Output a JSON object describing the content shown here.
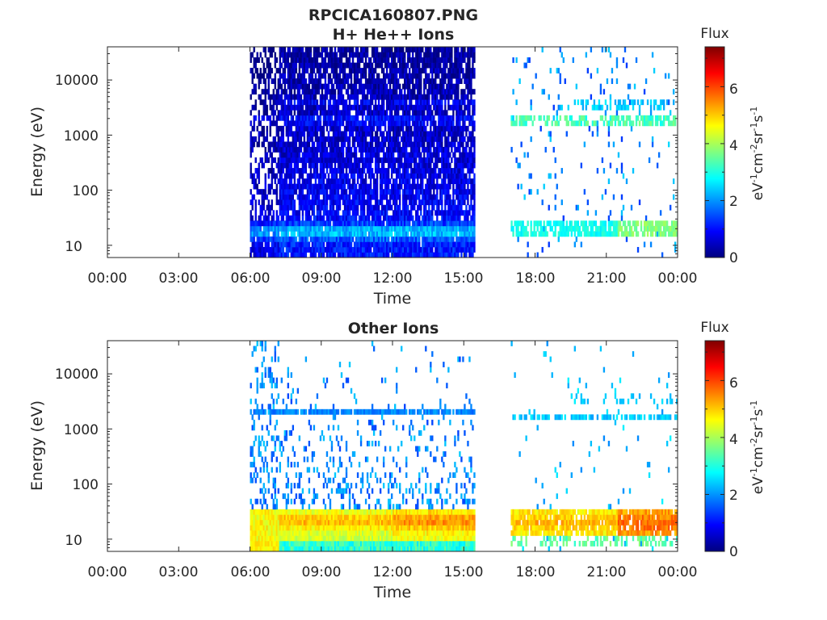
{
  "figure": {
    "title": "RPCICA160807.PNG"
  },
  "chart_data": [
    {
      "type": "heatmap",
      "title": "H+ He++ Ions",
      "xlabel": "Time",
      "ylabel": "Energy (eV)",
      "yscale": "log",
      "ylim": [
        6,
        40000
      ],
      "x_tick_labels": [
        "00:00",
        "03:00",
        "06:00",
        "09:00",
        "12:00",
        "15:00",
        "18:00",
        "21:00",
        "00:00"
      ],
      "y_tick_labels": [
        "10",
        "100",
        "1000",
        "10000"
      ],
      "y_tick_values": [
        10,
        100,
        1000,
        10000
      ],
      "colorbar": {
        "title": "Flux",
        "unit": {
          "base1": "eV",
          "sup1": "-1",
          "base2": "cm",
          "sup2": "-2",
          "base3": "sr",
          "sup3": "-1",
          "base4": "s",
          "sup4": "-1"
        },
        "range": [
          0,
          7.4
        ],
        "tick_labels": [
          "0",
          "2",
          "4",
          "6"
        ],
        "tick_values": [
          0,
          2,
          4,
          6
        ],
        "colormap": "jet"
      },
      "data_segments": [
        {
          "start_hour": 6.0,
          "end_hour": 15.5
        },
        {
          "start_hour": 17.0,
          "end_hour": 24.0
        }
      ]
    },
    {
      "type": "heatmap",
      "title": "Other Ions",
      "xlabel": "Time",
      "ylabel": "Energy (eV)",
      "yscale": "log",
      "ylim": [
        6,
        40000
      ],
      "x_tick_labels": [
        "00:00",
        "03:00",
        "06:00",
        "09:00",
        "12:00",
        "15:00",
        "18:00",
        "21:00",
        "00:00"
      ],
      "y_tick_labels": [
        "10",
        "100",
        "1000",
        "10000"
      ],
      "y_tick_values": [
        10,
        100,
        1000,
        10000
      ],
      "colorbar": {
        "title": "Flux",
        "unit": {
          "base1": "eV",
          "sup1": "-1",
          "base2": "cm",
          "sup2": "-2",
          "base3": "sr",
          "sup3": "-1",
          "base4": "s",
          "sup4": "-1"
        },
        "range": [
          0,
          7.4
        ],
        "tick_labels": [
          "0",
          "2",
          "4",
          "6"
        ],
        "tick_values": [
          0,
          2,
          4,
          6
        ],
        "colormap": "jet"
      },
      "data_segments": [
        {
          "start_hour": 6.0,
          "end_hour": 15.5
        },
        {
          "start_hour": 17.0,
          "end_hour": 24.0
        }
      ]
    }
  ]
}
